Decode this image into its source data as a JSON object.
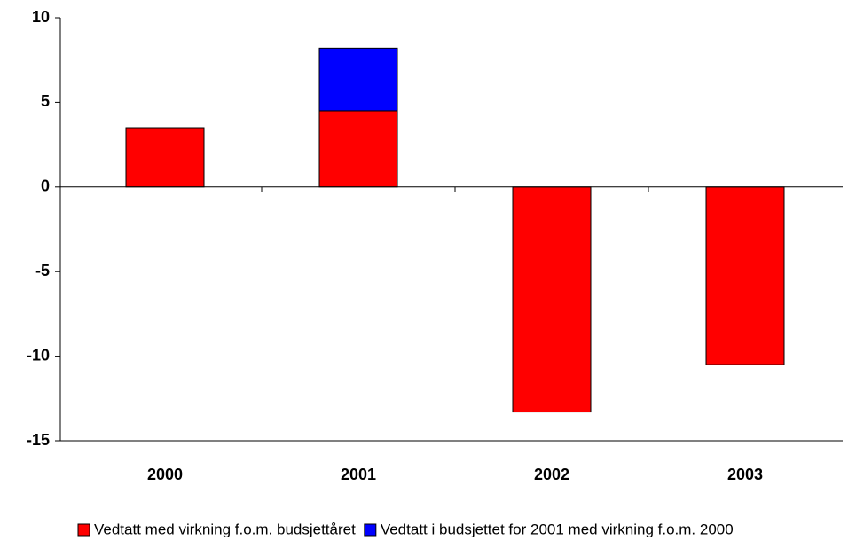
{
  "chart_data": {
    "type": "stacked_bar",
    "categories": [
      "2000",
      "2001",
      "2002",
      "2003"
    ],
    "series": [
      {
        "name": "Vedtatt med virkning f.o.m. budsjettåret",
        "color": "#ff0000",
        "values": [
          3.5,
          4.5,
          -13.3,
          -10.5
        ]
      },
      {
        "name": "Vedtatt i budsjettet for 2001 med virkning f.o.m. 2000",
        "color": "#0000ff",
        "values": [
          0,
          3.7,
          0,
          0
        ]
      }
    ],
    "ylim": [
      -15,
      10
    ],
    "yticks": [
      -15,
      -10,
      -5,
      0,
      5,
      10
    ],
    "legend": "bottom"
  }
}
